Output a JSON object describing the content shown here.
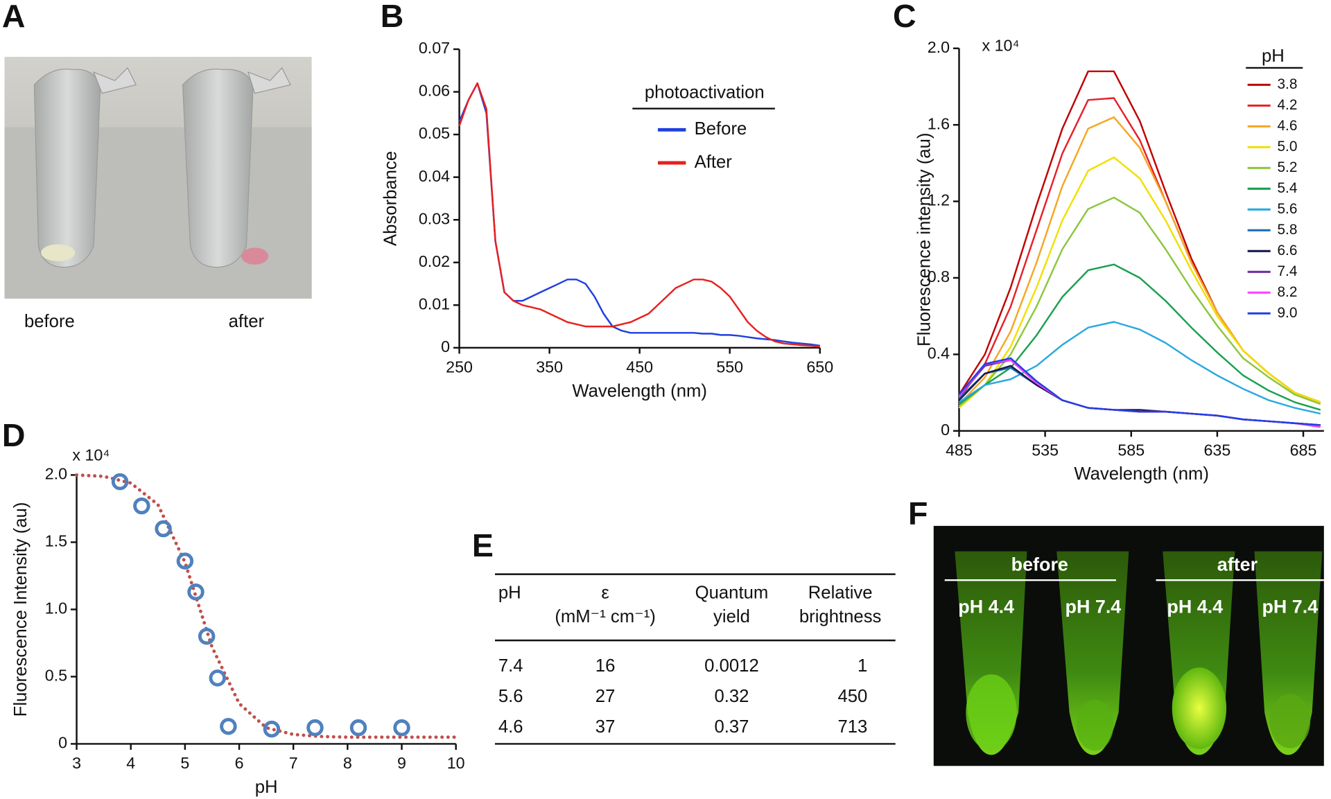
{
  "panel_a": {
    "letter": "A",
    "labels": [
      "before",
      "after"
    ]
  },
  "chart_data": [
    {
      "type": "line",
      "letter": "B",
      "x_label": "Wavelength (nm)",
      "y_label": "Absorbance",
      "legend_title": "photoactivation",
      "x": [
        250,
        260,
        270,
        280,
        290,
        300,
        310,
        320,
        330,
        340,
        350,
        360,
        370,
        380,
        390,
        400,
        410,
        420,
        430,
        440,
        450,
        460,
        470,
        480,
        490,
        500,
        510,
        520,
        530,
        540,
        550,
        560,
        570,
        580,
        590,
        600,
        610,
        620,
        630,
        640,
        650
      ],
      "series": [
        {
          "name": "Before",
          "color": "#1f3fdf",
          "values": [
            0.053,
            0.058,
            0.062,
            0.055,
            0.025,
            0.013,
            0.011,
            0.011,
            0.012,
            0.013,
            0.014,
            0.015,
            0.016,
            0.016,
            0.015,
            0.012,
            0.008,
            0.005,
            0.004,
            0.0035,
            0.0035,
            0.0035,
            0.0035,
            0.0035,
            0.0035,
            0.0035,
            0.0035,
            0.0033,
            0.0033,
            0.003,
            0.003,
            0.0028,
            0.0025,
            0.0022,
            0.002,
            0.0018,
            0.0015,
            0.0012,
            0.001,
            0.0008,
            0.0005
          ]
        },
        {
          "name": "After",
          "color": "#e8201e",
          "values": [
            0.052,
            0.058,
            0.062,
            0.056,
            0.025,
            0.013,
            0.011,
            0.01,
            0.0095,
            0.009,
            0.008,
            0.007,
            0.006,
            0.0055,
            0.005,
            0.005,
            0.005,
            0.005,
            0.0055,
            0.006,
            0.007,
            0.008,
            0.01,
            0.012,
            0.014,
            0.015,
            0.016,
            0.016,
            0.0155,
            0.014,
            0.012,
            0.009,
            0.006,
            0.004,
            0.0025,
            0.0015,
            0.001,
            0.0008,
            0.0006,
            0.0005,
            0.0003
          ]
        }
      ],
      "xlim": [
        250,
        650
      ],
      "xticks": [
        250,
        350,
        450,
        550,
        650
      ],
      "ylim": [
        0,
        0.07
      ],
      "yticks": [
        0,
        0.01,
        0.02,
        0.03,
        0.04,
        0.05,
        0.06,
        0.07
      ]
    },
    {
      "type": "line",
      "letter": "C",
      "x_label": "Wavelength (nm)",
      "y_label": "Fluorescence intensity (au)",
      "annotation": "x 10⁴",
      "legend_title": "pH",
      "x": [
        485,
        500,
        515,
        530,
        545,
        560,
        575,
        590,
        605,
        620,
        635,
        650,
        665,
        680,
        695
      ],
      "series": [
        {
          "name": "3.8",
          "color": "#c00000",
          "values": [
            0.19,
            0.4,
            0.75,
            1.18,
            1.58,
            1.88,
            1.88,
            1.62,
            1.25,
            0.9,
            0.62,
            0.42,
            0.3,
            0.2,
            0.15
          ]
        },
        {
          "name": "4.2",
          "color": "#e8202a",
          "values": [
            0.17,
            0.35,
            0.65,
            1.05,
            1.45,
            1.73,
            1.74,
            1.52,
            1.2,
            0.88,
            0.62,
            0.42,
            0.3,
            0.2,
            0.15
          ]
        },
        {
          "name": "4.6",
          "color": "#f5a623",
          "values": [
            0.14,
            0.28,
            0.52,
            0.88,
            1.28,
            1.58,
            1.64,
            1.48,
            1.2,
            0.88,
            0.62,
            0.42,
            0.3,
            0.2,
            0.15
          ]
        },
        {
          "name": "5.0",
          "color": "#f0e000",
          "values": [
            0.12,
            0.24,
            0.44,
            0.75,
            1.1,
            1.36,
            1.43,
            1.32,
            1.1,
            0.84,
            0.6,
            0.42,
            0.3,
            0.2,
            0.15
          ]
        },
        {
          "name": "5.2",
          "color": "#8cc63f",
          "values": [
            0.13,
            0.24,
            0.4,
            0.65,
            0.95,
            1.16,
            1.22,
            1.14,
            0.95,
            0.74,
            0.55,
            0.38,
            0.28,
            0.19,
            0.14
          ]
        },
        {
          "name": "5.4",
          "color": "#1aa050",
          "values": [
            0.14,
            0.24,
            0.33,
            0.5,
            0.7,
            0.84,
            0.87,
            0.8,
            0.68,
            0.54,
            0.41,
            0.29,
            0.21,
            0.15,
            0.11
          ]
        },
        {
          "name": "5.6",
          "color": "#29a9e0",
          "values": [
            0.15,
            0.24,
            0.27,
            0.34,
            0.45,
            0.54,
            0.57,
            0.53,
            0.46,
            0.37,
            0.29,
            0.22,
            0.16,
            0.12,
            0.09
          ]
        },
        {
          "name": "5.8",
          "color": "#1f6fb5",
          "values": [
            0.17,
            0.3,
            0.33,
            0.24,
            0.16,
            0.12,
            0.11,
            0.1,
            0.1,
            0.09,
            0.08,
            0.06,
            0.05,
            0.04,
            0.03
          ]
        },
        {
          "name": "6.6",
          "color": "#1a1a4e",
          "values": [
            0.16,
            0.3,
            0.34,
            0.24,
            0.16,
            0.12,
            0.11,
            0.11,
            0.1,
            0.09,
            0.08,
            0.06,
            0.05,
            0.04,
            0.03
          ]
        },
        {
          "name": "7.4",
          "color": "#7030a0",
          "values": [
            0.18,
            0.34,
            0.37,
            0.25,
            0.16,
            0.12,
            0.11,
            0.1,
            0.1,
            0.09,
            0.08,
            0.06,
            0.05,
            0.04,
            0.03
          ]
        },
        {
          "name": "8.2",
          "color": "#ff40ff",
          "values": [
            0.18,
            0.35,
            0.37,
            0.25,
            0.16,
            0.12,
            0.11,
            0.1,
            0.1,
            0.09,
            0.08,
            0.06,
            0.05,
            0.04,
            0.02
          ]
        },
        {
          "name": "9.0",
          "color": "#2040e0",
          "values": [
            0.19,
            0.35,
            0.38,
            0.26,
            0.16,
            0.12,
            0.11,
            0.1,
            0.1,
            0.09,
            0.08,
            0.06,
            0.05,
            0.04,
            0.03
          ]
        }
      ],
      "xlim": [
        485,
        697
      ],
      "xticks": [
        485,
        535,
        585,
        635,
        685
      ],
      "ylim": [
        0,
        2
      ],
      "yticks": [
        0,
        0.4,
        0.8,
        1.2,
        1.6,
        {
          "value": 2,
          "label": "2.0"
        }
      ]
    },
    {
      "type": "scatter",
      "letter": "D",
      "x_label": "pH",
      "y_label": "Fluorescence Intensity (au)",
      "annotation": "x 10⁴",
      "points": {
        "color": "#4f81bd",
        "x": [
          3.8,
          4.2,
          4.6,
          5.0,
          5.2,
          5.4,
          5.6,
          5.8,
          6.6,
          7.4,
          8.2,
          9.0
        ],
        "values": [
          1.95,
          1.77,
          1.6,
          1.36,
          1.13,
          0.8,
          0.49,
          0.13,
          0.11,
          0.12,
          0.12,
          0.12
        ]
      },
      "fit": {
        "color": "#c0504d",
        "x": [
          3,
          3.5,
          4,
          4.5,
          5,
          5.5,
          6,
          6.5,
          7,
          7.5,
          8,
          8.5,
          9,
          9.5,
          10
        ],
        "values": [
          2.0,
          1.99,
          1.94,
          1.78,
          1.35,
          0.72,
          0.3,
          0.12,
          0.07,
          0.055,
          0.05,
          0.05,
          0.05,
          0.05,
          0.05
        ]
      },
      "xlim": [
        3,
        10
      ],
      "xticks": [
        3,
        4,
        5,
        6,
        7,
        8,
        9,
        10
      ],
      "ylim": [
        0,
        2
      ],
      "yticks": [
        0,
        0.5,
        {
          "value": 1,
          "label": "1.0"
        },
        1.5,
        {
          "value": 2,
          "label": "2.0"
        }
      ]
    }
  ],
  "table": {
    "letter": "E",
    "header": [
      [
        "pH"
      ],
      [
        "ε",
        "(mM⁻¹ cm⁻¹)"
      ],
      [
        "Quantum",
        "yield"
      ],
      [
        "Relative",
        "brightness"
      ]
    ],
    "rows": [
      [
        "7.4",
        "16",
        "0.0012",
        "1"
      ],
      [
        "5.6",
        "27",
        "0.32",
        "450"
      ],
      [
        "4.6",
        "37",
        "0.37",
        "713"
      ]
    ]
  },
  "panel_f": {
    "letter": "F",
    "groups": [
      "before",
      "after"
    ],
    "labels": [
      "pH 4.4",
      "pH 7.4",
      "pH 4.4",
      "pH 7.4"
    ]
  }
}
